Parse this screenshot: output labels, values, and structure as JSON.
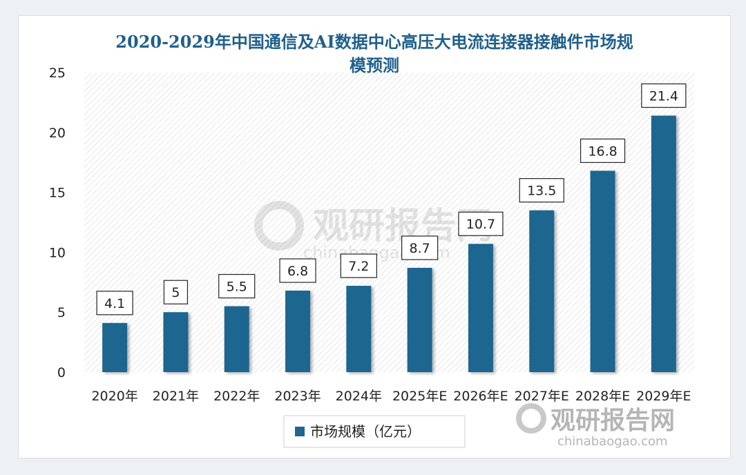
{
  "chart_data": {
    "type": "bar",
    "title_lines": [
      "2020-2029年中国通信及AI数据中心高压大电流连接器接触件市场规",
      "模预测"
    ],
    "categories": [
      "2020年",
      "2021年",
      "2022年",
      "2023年",
      "2024年",
      "2025年E",
      "2026年E",
      "2027年E",
      "2028年E",
      "2029年E"
    ],
    "series": [
      {
        "name": "市场规模（亿元）",
        "values": [
          4.1,
          5,
          5.5,
          6.8,
          7.2,
          8.7,
          10.7,
          13.5,
          16.8,
          21.4
        ]
      }
    ],
    "data_labels": [
      "4.1",
      "5",
      "5.5",
      "6.8",
      "7.2",
      "8.7",
      "10.7",
      "13.5",
      "16.8",
      "21.4"
    ],
    "ylim": [
      0,
      25
    ],
    "yticks": [
      0,
      5,
      10,
      15,
      20,
      25
    ],
    "legend_position": "bottom",
    "bar_color": "#1e6690",
    "title_color": "#1f5f8b"
  },
  "watermark": {
    "brand": "观研报告网",
    "url": "chinabaogao.com"
  }
}
